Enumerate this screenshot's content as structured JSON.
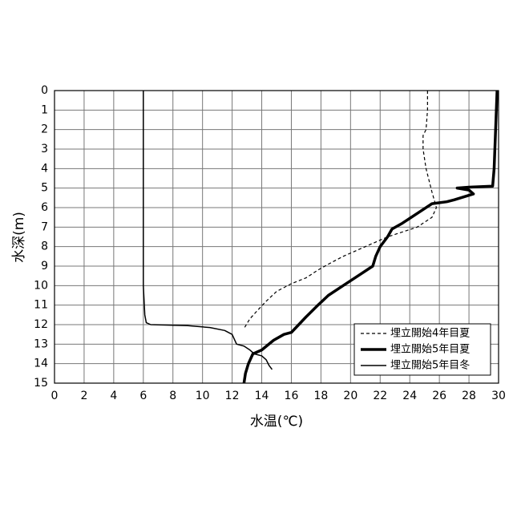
{
  "chart_data": {
    "type": "line",
    "x_label": "水温(℃)",
    "y_label": "水深(m)",
    "xlim": [
      0,
      30
    ],
    "xticks": [
      0,
      2,
      4,
      6,
      8,
      10,
      12,
      14,
      16,
      18,
      20,
      22,
      24,
      26,
      28,
      30
    ],
    "ylim": [
      15,
      0
    ],
    "yticks": [
      0,
      1,
      2,
      3,
      4,
      5,
      6,
      7,
      8,
      9,
      10,
      11,
      12,
      13,
      14,
      15
    ],
    "grid": true,
    "legend": "lower right",
    "series": [
      {
        "name": "埋立開始4年目夏",
        "color": "#000000",
        "dash": "4 3",
        "width": 1.2,
        "x": [
          25.2,
          25.2,
          25.1,
          24.9,
          24.9,
          25.1,
          25.5,
          25.8,
          25.5,
          24.5,
          22.5,
          21,
          19.5,
          18.5,
          17.8,
          17,
          16,
          15,
          14.3,
          13.8,
          13.2,
          12.8
        ],
        "values": [
          0,
          1,
          2,
          2.3,
          3,
          4,
          5.2,
          6,
          6.5,
          7,
          7.5,
          8,
          8.5,
          8.9,
          9.2,
          9.6,
          9.9,
          10.3,
          10.8,
          11.2,
          11.7,
          12.2
        ]
      },
      {
        "name": "埋立開始5年目夏",
        "color": "#000000",
        "dash": "none",
        "width": 3.5,
        "x": [
          29.9,
          29.8,
          29.7,
          29.6,
          28,
          27.2,
          28,
          28.3,
          27,
          26.5,
          25.5,
          24.5,
          23.5,
          22.8,
          22.5,
          22,
          21.7,
          21.5,
          20.5,
          19.5,
          18.5,
          17.8,
          17,
          16.5,
          16,
          15.5,
          14.8,
          14,
          13.4,
          13.1,
          12.9,
          12.8
        ],
        "values": [
          0,
          2,
          4,
          4.9,
          4.95,
          5,
          5.1,
          5.3,
          5.6,
          5.7,
          5.8,
          6.3,
          6.8,
          7.1,
          7.5,
          8,
          8.5,
          9,
          9.5,
          10,
          10.5,
          11,
          11.6,
          12,
          12.4,
          12.5,
          12.8,
          13.3,
          13.5,
          14,
          14.5,
          15
        ]
      },
      {
        "name": "埋立開始5年目冬",
        "color": "#000000",
        "dash": "none",
        "width": 1.5,
        "x": [
          6,
          6,
          6.1,
          6.2,
          6.5,
          9,
          10.5,
          11.5,
          12,
          12.3,
          12.8,
          13.2,
          13.5,
          14,
          14.3,
          14.5,
          14.7
        ],
        "values": [
          0,
          10,
          11.5,
          11.9,
          12,
          12.05,
          12.15,
          12.3,
          12.5,
          13,
          13.1,
          13.3,
          13.5,
          13.6,
          13.8,
          14.1,
          14.3
        ]
      }
    ]
  }
}
